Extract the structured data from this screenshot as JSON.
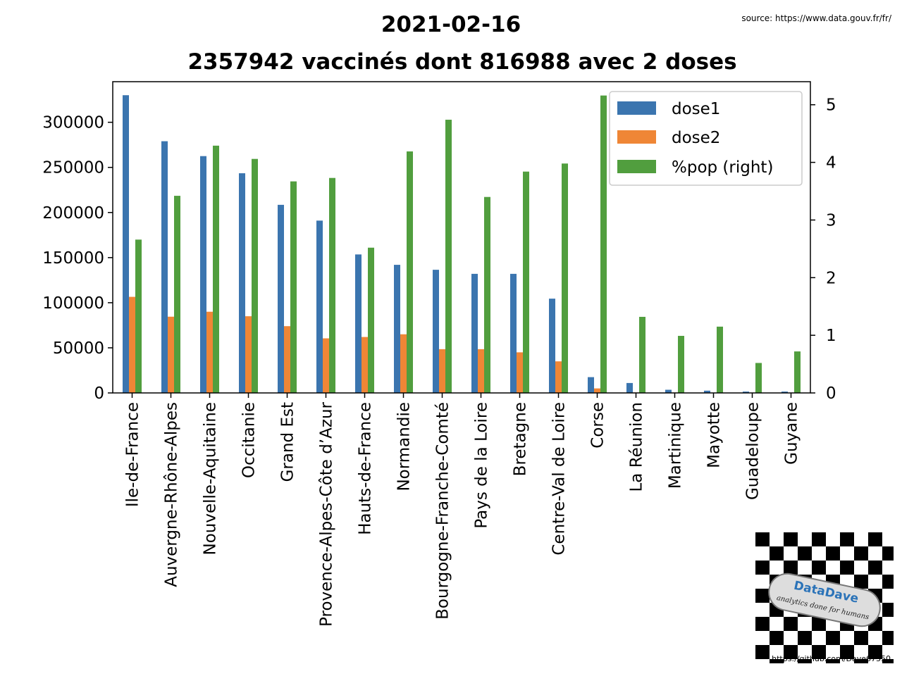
{
  "header": {
    "date": "2021-02-16",
    "subtitle": "2357942 vaccinés dont 816988 avec 2 doses",
    "source": "source: https://www.data.gouv.fr/fr/"
  },
  "logo": {
    "brand": "DataDave",
    "tagline": "analytics done for humans",
    "url": "https://github.com/Dave67350"
  },
  "colors": {
    "dose1": "#3b75af",
    "dose2": "#ef8636",
    "pop": "#519e3e"
  },
  "chart_data": {
    "type": "bar",
    "categories": [
      "Ile-de-France",
      "Auvergne-Rhône-Alpes",
      "Nouvelle-Aquitaine",
      "Occitanie",
      "Grand Est",
      "Provence-Alpes-Côte d’Azur",
      "Hauts-de-France",
      "Normandie",
      "Bourgogne-Franche-Comté",
      "Pays de la Loire",
      "Bretagne",
      "Centre-Val de Loire",
      "Corse",
      "La Réunion",
      "Martinique",
      "Mayotte",
      "Guadeloupe",
      "Guyane"
    ],
    "series": [
      {
        "name": "dose1",
        "axis": "left",
        "values": [
          330000,
          279000,
          262500,
          243500,
          208500,
          191000,
          153500,
          142000,
          136500,
          132000,
          132000,
          104500,
          17500,
          11000,
          3500,
          2500,
          1500,
          1500
        ]
      },
      {
        "name": "dose2",
        "axis": "left",
        "values": [
          106500,
          84500,
          90000,
          85000,
          74000,
          60500,
          62000,
          65000,
          48500,
          48500,
          45000,
          35000,
          5000,
          500,
          500,
          200,
          200,
          200
        ]
      },
      {
        "name": "%pop (right)",
        "axis": "right",
        "values": [
          2.66,
          3.42,
          4.29,
          4.06,
          3.67,
          3.73,
          2.52,
          4.19,
          4.74,
          3.4,
          3.84,
          3.98,
          5.16,
          1.32,
          0.99,
          1.15,
          0.52,
          0.72
        ]
      }
    ],
    "ylim": [
      0,
      345000
    ],
    "yticks": [
      0,
      50000,
      100000,
      150000,
      200000,
      250000,
      300000
    ],
    "y2lim": [
      0,
      5.4
    ],
    "y2ticks": [
      0,
      1,
      2,
      3,
      4,
      5
    ],
    "legend_position": "upper-right",
    "grid": false
  }
}
